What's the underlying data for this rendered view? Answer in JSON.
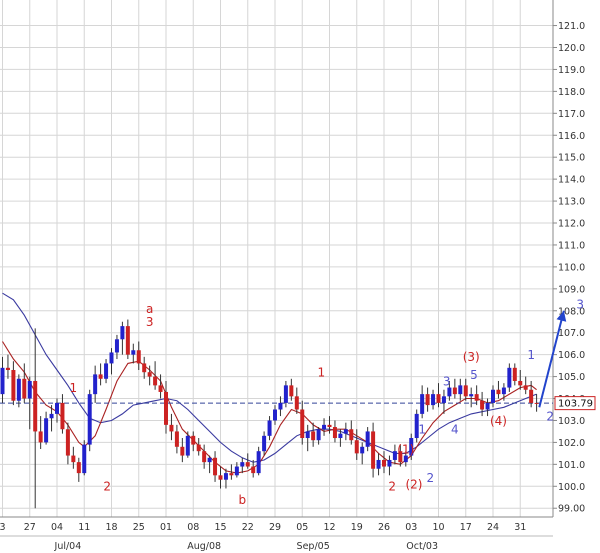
{
  "chart_data": {
    "type": "candlestick",
    "title": "",
    "xlabel": "",
    "ylabel": "",
    "ylim": [
      98.6,
      121.8
    ],
    "grid": true,
    "y_ticks": [
      "99.00",
      "100.0",
      "101.0",
      "102.0",
      "103.0",
      "104.0",
      "105.0",
      "106.0",
      "107.0",
      "108.0",
      "109.0",
      "110.0",
      "111.0",
      "112.0",
      "113.0",
      "114.0",
      "115.0",
      "116.0",
      "117.0",
      "118.0",
      "119.0",
      "120.0",
      "121.0"
    ],
    "y_tick_values": [
      99,
      100,
      101,
      102,
      103,
      104,
      105,
      106,
      107,
      108,
      109,
      110,
      111,
      112,
      113,
      114,
      115,
      116,
      117,
      118,
      119,
      120,
      121
    ],
    "x_ticks": [
      {
        "label": "3",
        "i": 0
      },
      {
        "label": "27",
        "i": 5
      },
      {
        "label": "04",
        "i": 10
      },
      {
        "label": "11",
        "i": 15
      },
      {
        "label": "18",
        "i": 20
      },
      {
        "label": "25",
        "i": 25
      },
      {
        "label": "01",
        "i": 30
      },
      {
        "label": "08",
        "i": 35
      },
      {
        "label": "15",
        "i": 40
      },
      {
        "label": "22",
        "i": 45
      },
      {
        "label": "29",
        "i": 50
      },
      {
        "label": "05",
        "i": 55
      },
      {
        "label": "12",
        "i": 60
      },
      {
        "label": "19",
        "i": 65
      },
      {
        "label": "26",
        "i": 70
      },
      {
        "label": "03",
        "i": 75
      },
      {
        "label": "10",
        "i": 80
      },
      {
        "label": "17",
        "i": 85
      },
      {
        "label": "24",
        "i": 90
      },
      {
        "label": "31",
        "i": 95
      }
    ],
    "months": [
      {
        "label": "Jul/04",
        "i": 12
      },
      {
        "label": "Aug/08",
        "i": 37
      },
      {
        "label": "Sep/05",
        "i": 57
      },
      {
        "label": "Oct/03",
        "i": 77
      }
    ],
    "last_price": "103.79",
    "last_price_value": 103.79,
    "reference_line": 103.79,
    "candles": [
      [
        104.2,
        105.9,
        103.8,
        105.4
      ],
      [
        105.4,
        106.0,
        104.9,
        105.3
      ],
      [
        105.3,
        105.7,
        103.7,
        103.9
      ],
      [
        103.9,
        105.1,
        103.6,
        104.9
      ],
      [
        104.9,
        105.6,
        103.8,
        104.0
      ],
      [
        104.0,
        105.0,
        102.6,
        104.8
      ],
      [
        104.8,
        107.2,
        99.0,
        102.5
      ],
      [
        102.5,
        103.2,
        101.7,
        102.0
      ],
      [
        102.0,
        103.4,
        101.9,
        103.1
      ],
      [
        103.1,
        103.7,
        102.5,
        103.3
      ],
      [
        103.3,
        104.0,
        102.9,
        103.8
      ],
      [
        103.8,
        104.2,
        102.4,
        102.6
      ],
      [
        102.6,
        102.9,
        101.0,
        101.4
      ],
      [
        101.4,
        101.8,
        100.8,
        101.1
      ],
      [
        101.1,
        101.3,
        100.2,
        100.6
      ],
      [
        100.6,
        102.1,
        100.5,
        101.9
      ],
      [
        101.9,
        104.4,
        101.6,
        104.2
      ],
      [
        104.2,
        105.5,
        103.8,
        105.1
      ],
      [
        105.1,
        105.6,
        104.6,
        104.9
      ],
      [
        104.9,
        105.8,
        104.7,
        105.6
      ],
      [
        105.6,
        106.3,
        105.1,
        106.1
      ],
      [
        106.1,
        106.9,
        105.8,
        106.7
      ],
      [
        106.7,
        107.5,
        106.0,
        107.3
      ],
      [
        107.3,
        107.6,
        105.8,
        106.0
      ],
      [
        106.0,
        106.5,
        105.6,
        106.2
      ],
      [
        106.2,
        106.6,
        105.3,
        105.6
      ],
      [
        105.6,
        105.9,
        104.9,
        105.2
      ],
      [
        105.2,
        105.5,
        104.6,
        105.0
      ],
      [
        105.0,
        105.7,
        104.4,
        104.6
      ],
      [
        104.6,
        105.1,
        104.0,
        104.3
      ],
      [
        104.3,
        104.8,
        102.4,
        102.8
      ],
      [
        102.8,
        103.3,
        102.1,
        102.5
      ],
      [
        102.5,
        102.8,
        101.5,
        101.8
      ],
      [
        101.8,
        102.2,
        101.1,
        101.4
      ],
      [
        101.4,
        102.5,
        101.3,
        102.3
      ],
      [
        102.3,
        102.5,
        101.6,
        101.9
      ],
      [
        101.9,
        102.2,
        101.4,
        101.6
      ],
      [
        101.6,
        101.9,
        100.8,
        101.1
      ],
      [
        101.1,
        101.4,
        100.6,
        101.3
      ],
      [
        101.3,
        101.6,
        100.2,
        100.5
      ],
      [
        100.5,
        100.9,
        99.9,
        100.3
      ],
      [
        100.3,
        100.8,
        99.9,
        100.6
      ],
      [
        100.6,
        101.0,
        100.3,
        100.5
      ],
      [
        100.5,
        101.1,
        100.4,
        100.9
      ],
      [
        100.9,
        101.3,
        100.6,
        101.1
      ],
      [
        101.1,
        101.5,
        100.8,
        100.9
      ],
      [
        100.9,
        101.2,
        100.4,
        100.6
      ],
      [
        100.6,
        101.8,
        100.5,
        101.6
      ],
      [
        101.6,
        102.5,
        101.4,
        102.3
      ],
      [
        102.3,
        103.2,
        102.1,
        103.0
      ],
      [
        103.0,
        103.7,
        102.8,
        103.5
      ],
      [
        103.5,
        104.1,
        103.2,
        103.8
      ],
      [
        103.8,
        104.8,
        103.6,
        104.6
      ],
      [
        104.6,
        104.9,
        103.9,
        104.1
      ],
      [
        104.1,
        104.5,
        103.3,
        103.5
      ],
      [
        103.5,
        103.9,
        101.9,
        102.2
      ],
      [
        102.2,
        102.8,
        101.6,
        102.5
      ],
      [
        102.5,
        102.9,
        101.8,
        102.1
      ],
      [
        102.1,
        102.7,
        101.9,
        102.6
      ],
      [
        102.6,
        103.1,
        102.3,
        102.8
      ],
      [
        102.8,
        103.2,
        102.4,
        102.7
      ],
      [
        102.7,
        103.0,
        102.0,
        102.2
      ],
      [
        102.2,
        102.6,
        101.8,
        102.4
      ],
      [
        102.4,
        102.9,
        102.1,
        102.6
      ],
      [
        102.6,
        103.0,
        101.9,
        102.1
      ],
      [
        102.1,
        102.6,
        101.2,
        101.5
      ],
      [
        101.5,
        102.0,
        101.0,
        101.8
      ],
      [
        101.8,
        102.7,
        101.6,
        102.5
      ],
      [
        102.5,
        102.9,
        100.4,
        100.8
      ],
      [
        100.8,
        101.5,
        100.5,
        101.2
      ],
      [
        101.2,
        101.6,
        100.6,
        100.9
      ],
      [
        100.9,
        101.4,
        100.5,
        101.2
      ],
      [
        101.2,
        101.9,
        101.0,
        101.6
      ],
      [
        101.6,
        101.9,
        100.9,
        101.1
      ],
      [
        101.1,
        101.6,
        100.9,
        101.4
      ],
      [
        101.4,
        102.4,
        101.2,
        102.2
      ],
      [
        102.2,
        103.5,
        102.0,
        103.3
      ],
      [
        103.3,
        104.6,
        103.1,
        104.2
      ],
      [
        104.2,
        104.5,
        103.4,
        103.7
      ],
      [
        103.7,
        104.4,
        103.5,
        104.2
      ],
      [
        104.2,
        104.7,
        103.6,
        103.8
      ],
      [
        103.8,
        104.4,
        103.3,
        104.1
      ],
      [
        104.1,
        104.8,
        103.9,
        104.5
      ],
      [
        104.5,
        104.9,
        104.0,
        104.2
      ],
      [
        104.2,
        104.9,
        103.9,
        104.6
      ],
      [
        104.6,
        104.9,
        103.9,
        104.1
      ],
      [
        104.1,
        104.5,
        103.6,
        104.2
      ],
      [
        104.2,
        104.6,
        103.7,
        103.9
      ],
      [
        103.9,
        104.3,
        103.2,
        103.5
      ],
      [
        103.5,
        104.0,
        103.2,
        103.8
      ],
      [
        103.8,
        104.6,
        103.6,
        104.4
      ],
      [
        104.4,
        104.8,
        104.0,
        104.2
      ],
      [
        104.2,
        104.7,
        103.9,
        104.5
      ],
      [
        104.5,
        105.6,
        104.3,
        105.4
      ],
      [
        105.4,
        105.6,
        104.6,
        104.8
      ],
      [
        104.8,
        105.3,
        104.4,
        104.6
      ],
      [
        104.6,
        105.0,
        104.2,
        104.4
      ],
      [
        104.4,
        104.8,
        103.6,
        103.8
      ],
      [
        103.8,
        104.2,
        103.4,
        103.79
      ]
    ],
    "ma_short": [
      [
        0,
        106.6
      ],
      [
        2,
        105.8
      ],
      [
        4,
        105.2
      ],
      [
        6,
        104.3
      ],
      [
        8,
        103.7
      ],
      [
        10,
        103.4
      ],
      [
        12,
        102.8
      ],
      [
        14,
        102.0
      ],
      [
        15,
        101.8
      ],
      [
        17,
        102.3
      ],
      [
        19,
        103.5
      ],
      [
        21,
        104.8
      ],
      [
        23,
        105.6
      ],
      [
        25,
        105.7
      ],
      [
        27,
        105.3
      ],
      [
        29,
        104.8
      ],
      [
        31,
        103.6
      ],
      [
        33,
        102.6
      ],
      [
        35,
        102.1
      ],
      [
        37,
        101.6
      ],
      [
        39,
        101.1
      ],
      [
        41,
        100.7
      ],
      [
        43,
        100.6
      ],
      [
        45,
        100.7
      ],
      [
        47,
        101.0
      ],
      [
        49,
        101.8
      ],
      [
        51,
        102.8
      ],
      [
        53,
        103.5
      ],
      [
        55,
        103.3
      ],
      [
        57,
        102.8
      ],
      [
        59,
        102.5
      ],
      [
        61,
        102.6
      ],
      [
        63,
        102.6
      ],
      [
        65,
        102.3
      ],
      [
        67,
        102.0
      ],
      [
        69,
        101.5
      ],
      [
        71,
        101.1
      ],
      [
        73,
        101.0
      ],
      [
        75,
        101.4
      ],
      [
        77,
        102.2
      ],
      [
        79,
        102.9
      ],
      [
        81,
        103.4
      ],
      [
        83,
        103.7
      ],
      [
        85,
        104.0
      ],
      [
        87,
        104.0
      ],
      [
        89,
        103.8
      ],
      [
        91,
        103.9
      ],
      [
        93,
        104.2
      ],
      [
        95,
        104.5
      ],
      [
        97,
        104.6
      ],
      [
        98,
        104.4
      ]
    ],
    "ma_long": [
      [
        0,
        108.8
      ],
      [
        2,
        108.5
      ],
      [
        4,
        107.8
      ],
      [
        6,
        106.9
      ],
      [
        8,
        106.0
      ],
      [
        10,
        105.3
      ],
      [
        12,
        104.6
      ],
      [
        14,
        103.8
      ],
      [
        16,
        103.1
      ],
      [
        18,
        102.9
      ],
      [
        20,
        103.0
      ],
      [
        22,
        103.3
      ],
      [
        24,
        103.7
      ],
      [
        26,
        103.8
      ],
      [
        28,
        103.9
      ],
      [
        30,
        104.0
      ],
      [
        32,
        103.9
      ],
      [
        34,
        103.5
      ],
      [
        36,
        103.0
      ],
      [
        38,
        102.5
      ],
      [
        40,
        102.0
      ],
      [
        42,
        101.6
      ],
      [
        44,
        101.3
      ],
      [
        46,
        101.1
      ],
      [
        48,
        101.2
      ],
      [
        50,
        101.5
      ],
      [
        52,
        101.9
      ],
      [
        54,
        102.3
      ],
      [
        56,
        102.5
      ],
      [
        58,
        102.6
      ],
      [
        60,
        102.6
      ],
      [
        62,
        102.5
      ],
      [
        64,
        102.3
      ],
      [
        66,
        102.1
      ],
      [
        68,
        101.9
      ],
      [
        70,
        101.7
      ],
      [
        72,
        101.5
      ],
      [
        74,
        101.5
      ],
      [
        76,
        101.8
      ],
      [
        78,
        102.2
      ],
      [
        80,
        102.6
      ],
      [
        82,
        102.9
      ],
      [
        84,
        103.1
      ],
      [
        86,
        103.3
      ],
      [
        88,
        103.4
      ],
      [
        90,
        103.5
      ],
      [
        92,
        103.6
      ],
      [
        94,
        103.8
      ],
      [
        96,
        104.0
      ],
      [
        98,
        104.2
      ]
    ],
    "forecast_arrow": {
      "from": [
        98.5,
        103.6
      ],
      "to": [
        103.0,
        108.0
      ]
    },
    "wave_labels": [
      {
        "text": "1",
        "i": 13,
        "y": 104.3,
        "color": "#cc2222"
      },
      {
        "text": "2",
        "i": 19.2,
        "y": 99.8,
        "color": "#cc2222"
      },
      {
        "text": "a",
        "i": 27,
        "y": 107.9,
        "color": "#cc2222"
      },
      {
        "text": "3",
        "i": 27,
        "y": 107.3,
        "color": "#cc2222"
      },
      {
        "text": "b",
        "i": 44,
        "y": 99.2,
        "color": "#cc2222"
      },
      {
        "text": "1",
        "i": 58.5,
        "y": 105.0,
        "color": "#cc2222"
      },
      {
        "text": "(1)",
        "i": 74,
        "y": 101.5,
        "color": "#cc2222"
      },
      {
        "text": "2",
        "i": 71.5,
        "y": 99.8,
        "color": "#cc2222"
      },
      {
        "text": "(2)",
        "i": 75.5,
        "y": 99.9,
        "color": "#cc2222"
      },
      {
        "text": "1",
        "i": 77,
        "y": 102.4,
        "color": "#5555cc"
      },
      {
        "text": "2",
        "i": 78.5,
        "y": 100.2,
        "color": "#5555cc"
      },
      {
        "text": "3",
        "i": 81.5,
        "y": 104.6,
        "color": "#5555cc"
      },
      {
        "text": "4",
        "i": 83,
        "y": 102.4,
        "color": "#5555cc"
      },
      {
        "text": "(3)",
        "i": 86,
        "y": 105.7,
        "color": "#cc2222"
      },
      {
        "text": "5",
        "i": 86.5,
        "y": 104.9,
        "color": "#5555cc"
      },
      {
        "text": "(4)",
        "i": 91,
        "y": 102.8,
        "color": "#cc2222"
      },
      {
        "text": "1",
        "i": 97,
        "y": 105.8,
        "color": "#5555cc"
      },
      {
        "text": "2",
        "i": 100.5,
        "y": 103.0,
        "color": "#5555cc"
      },
      {
        "text": "3",
        "i": 106,
        "y": 108.1,
        "color": "#5555cc"
      }
    ],
    "colors": {
      "up": "#2222cc",
      "down": "#cc2222",
      "ma_short": "#aa2222",
      "ma_long": "#3a3aa0",
      "grid": "#d6d6d6",
      "arrow": "#2244cc",
      "reference": "#334499"
    }
  }
}
